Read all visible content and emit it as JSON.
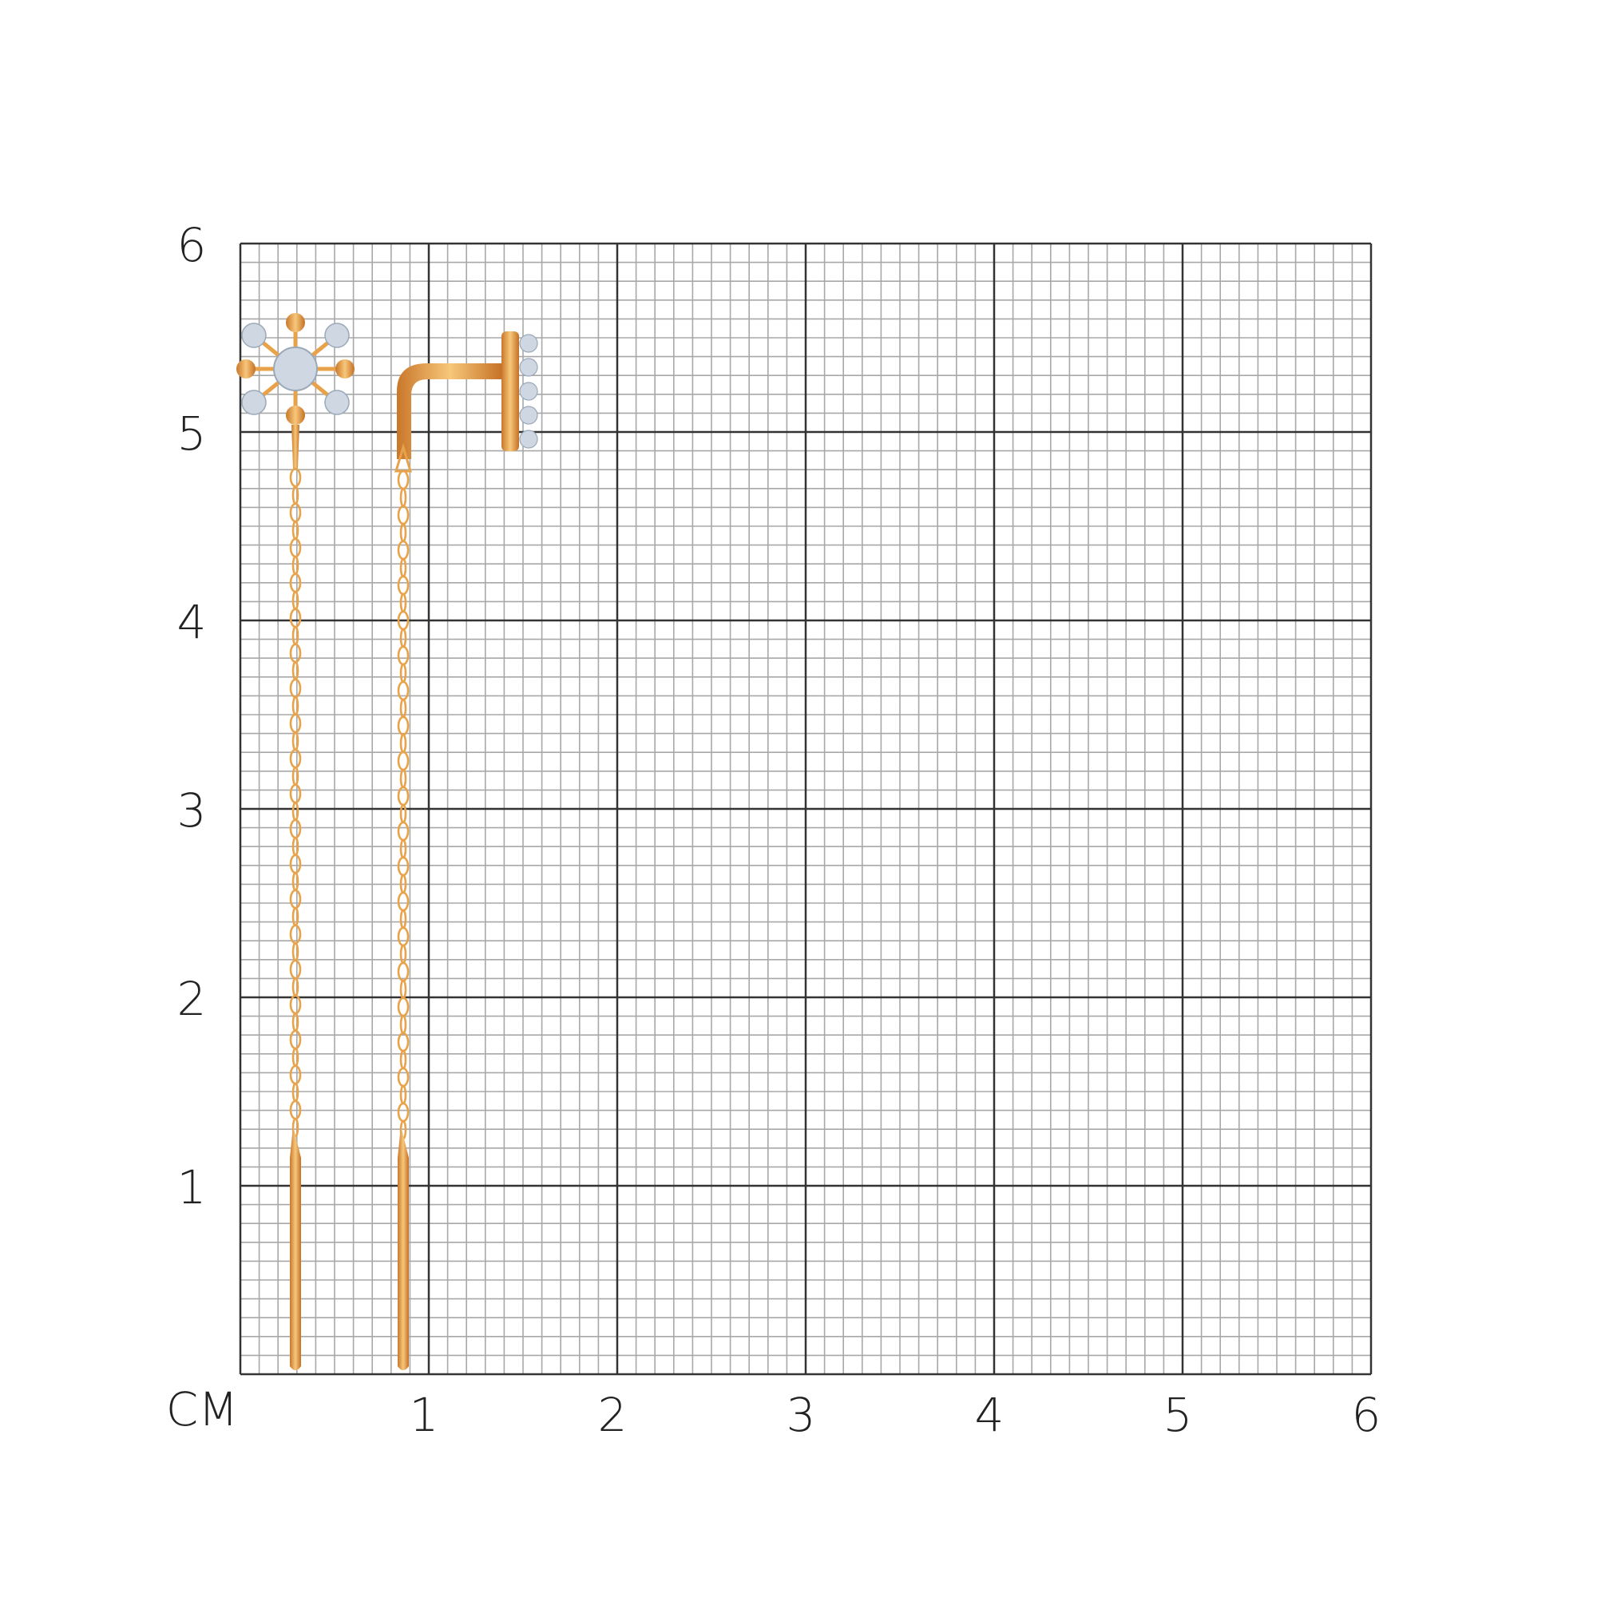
{
  "grid": {
    "unit_label": "СМ",
    "x_ticks": [
      "1",
      "2",
      "3",
      "4",
      "5",
      "6"
    ],
    "y_ticks": [
      "1",
      "2",
      "3",
      "4",
      "5",
      "6"
    ],
    "range_cm": [
      0,
      6
    ],
    "minor_divisions_per_cm": 10
  },
  "colors": {
    "major_line": "#333333",
    "minor_line": "#a8a8a8",
    "gold": "#e8a24a",
    "stone": "#cfd8e2"
  },
  "product": {
    "items": [
      {
        "name": "earring-flower-front"
      },
      {
        "name": "earring-side-view"
      }
    ]
  }
}
